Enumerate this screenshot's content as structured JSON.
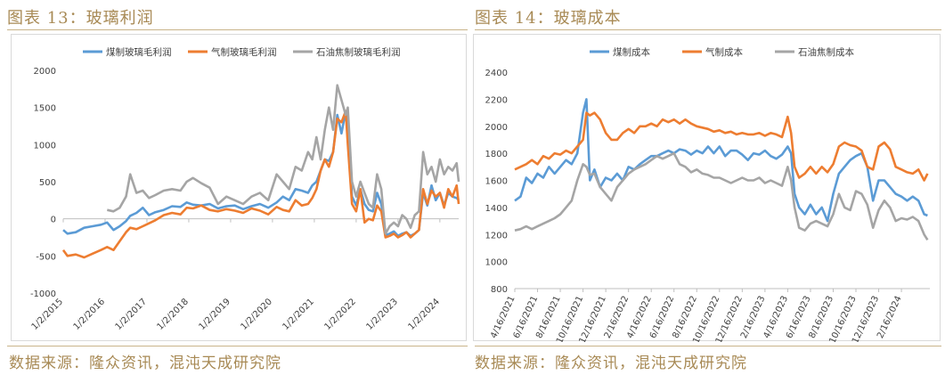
{
  "left": {
    "title": "图表 13：玻璃利润",
    "source": "数据来源：隆众资讯，混沌天成研究院"
  },
  "right": {
    "title": "图表 14：玻璃成本",
    "source": "数据来源：隆众资讯，混沌天成研究院"
  },
  "chart_data": [
    {
      "type": "line",
      "title": "",
      "xlabel": "",
      "ylabel": "",
      "ylim": [
        -1000,
        2000
      ],
      "yticks": [
        -1000,
        -500,
        0,
        500,
        1000,
        1500,
        2000
      ],
      "xlim": [
        2015.0,
        2024.45
      ],
      "xtick_labels": [
        "1/2/2015",
        "1/2/2016",
        "1/2/2017",
        "1/2/2018",
        "1/2/2019",
        "1/2/2020",
        "1/2/2021",
        "1/2/2022",
        "1/2/2023",
        "1/2/2024"
      ],
      "xtick_pos": [
        2015,
        2016,
        2017,
        2018,
        2019,
        2020,
        2021,
        2022,
        2023,
        2024
      ],
      "grid": false,
      "legend": "top",
      "series": [
        {
          "name": "煤制玻璃毛利润",
          "color": "#5B9BD5",
          "x": [
            2015.0,
            2015.1,
            2015.3,
            2015.5,
            2015.7,
            2015.9,
            2016.05,
            2016.2,
            2016.35,
            2016.5,
            2016.6,
            2016.75,
            2016.9,
            2017.05,
            2017.2,
            2017.4,
            2017.6,
            2017.8,
            2017.95,
            2018.1,
            2018.3,
            2018.5,
            2018.7,
            2018.9,
            2019.1,
            2019.3,
            2019.5,
            2019.7,
            2019.9,
            2020.1,
            2020.25,
            2020.4,
            2020.55,
            2020.7,
            2020.85,
            2020.95,
            2021.05,
            2021.15,
            2021.25,
            2021.35,
            2021.45,
            2021.55,
            2021.65,
            2021.75,
            2021.8,
            2021.9,
            2022.0,
            2022.1,
            2022.2,
            2022.3,
            2022.4,
            2022.5,
            2022.6,
            2022.7,
            2022.8,
            2022.9,
            2023.0,
            2023.1,
            2023.2,
            2023.3,
            2023.4,
            2023.5,
            2023.6,
            2023.7,
            2023.8,
            2023.9,
            2024.0,
            2024.1,
            2024.2,
            2024.3,
            2024.4,
            2024.45
          ],
          "y": [
            -150,
            -200,
            -180,
            -120,
            -100,
            -80,
            -50,
            -150,
            -100,
            -30,
            40,
            80,
            150,
            50,
            90,
            120,
            170,
            160,
            220,
            190,
            180,
            200,
            140,
            170,
            180,
            130,
            170,
            200,
            150,
            220,
            300,
            250,
            400,
            380,
            350,
            450,
            500,
            650,
            800,
            780,
            900,
            1400,
            1150,
            1450,
            1200,
            300,
            180,
            400,
            200,
            120,
            100,
            350,
            200,
            -220,
            -200,
            -170,
            -230,
            -200,
            -180,
            -230,
            -200,
            -150,
            350,
            180,
            450,
            250,
            350,
            180,
            350,
            300,
            280,
            250
          ]
        },
        {
          "name": "气制玻璃毛利润",
          "color": "#ED7D31",
          "x": [
            2015.0,
            2015.1,
            2015.3,
            2015.5,
            2015.7,
            2015.9,
            2016.05,
            2016.2,
            2016.35,
            2016.5,
            2016.6,
            2016.75,
            2016.9,
            2017.05,
            2017.2,
            2017.4,
            2017.6,
            2017.8,
            2017.95,
            2018.1,
            2018.3,
            2018.5,
            2018.7,
            2018.9,
            2019.1,
            2019.3,
            2019.5,
            2019.7,
            2019.9,
            2020.1,
            2020.25,
            2020.4,
            2020.55,
            2020.7,
            2020.85,
            2020.95,
            2021.05,
            2021.15,
            2021.25,
            2021.35,
            2021.45,
            2021.55,
            2021.65,
            2021.75,
            2021.8,
            2021.9,
            2022.0,
            2022.1,
            2022.2,
            2022.3,
            2022.4,
            2022.5,
            2022.6,
            2022.7,
            2022.8,
            2022.9,
            2023.0,
            2023.1,
            2023.2,
            2023.3,
            2023.4,
            2023.5,
            2023.6,
            2023.7,
            2023.8,
            2023.9,
            2024.0,
            2024.1,
            2024.2,
            2024.3,
            2024.4,
            2024.45
          ],
          "y": [
            -420,
            -500,
            -480,
            -520,
            -470,
            -420,
            -380,
            -420,
            -300,
            -180,
            -120,
            -140,
            -100,
            -60,
            -20,
            50,
            80,
            60,
            150,
            140,
            180,
            120,
            100,
            130,
            110,
            80,
            140,
            110,
            60,
            160,
            120,
            100,
            250,
            180,
            200,
            280,
            400,
            650,
            800,
            700,
            900,
            1350,
            1300,
            1450,
            1000,
            200,
            100,
            400,
            -50,
            0,
            -20,
            180,
            100,
            -250,
            -230,
            -200,
            -250,
            -220,
            -180,
            -250,
            -200,
            -150,
            400,
            200,
            380,
            300,
            350,
            150,
            400,
            300,
            450,
            200
          ]
        },
        {
          "name": "石油焦制玻璃毛利润",
          "color": "#A5A5A5",
          "x": [
            2016.05,
            2016.2,
            2016.35,
            2016.5,
            2016.6,
            2016.75,
            2016.9,
            2017.05,
            2017.2,
            2017.4,
            2017.6,
            2017.8,
            2017.95,
            2018.1,
            2018.3,
            2018.5,
            2018.7,
            2018.9,
            2019.1,
            2019.3,
            2019.5,
            2019.7,
            2019.9,
            2020.1,
            2020.25,
            2020.4,
            2020.55,
            2020.7,
            2020.85,
            2020.95,
            2021.05,
            2021.15,
            2021.25,
            2021.35,
            2021.45,
            2021.55,
            2021.65,
            2021.75,
            2021.8,
            2021.9,
            2022.0,
            2022.1,
            2022.2,
            2022.3,
            2022.4,
            2022.5,
            2022.6,
            2022.7,
            2022.8,
            2022.9,
            2023.0,
            2023.1,
            2023.2,
            2023.3,
            2023.4,
            2023.5,
            2023.6,
            2023.7,
            2023.8,
            2023.9,
            2024.0,
            2024.1,
            2024.2,
            2024.3,
            2024.4,
            2024.45
          ],
          "y": [
            120,
            100,
            150,
            300,
            600,
            350,
            380,
            280,
            320,
            380,
            400,
            380,
            500,
            550,
            480,
            420,
            200,
            300,
            250,
            200,
            300,
            350,
            250,
            600,
            500,
            400,
            700,
            650,
            900,
            800,
            1100,
            800,
            1200,
            1500,
            1200,
            1800,
            1600,
            1400,
            1500,
            500,
            300,
            500,
            350,
            200,
            150,
            600,
            400,
            -200,
            -100,
            -50,
            -100,
            50,
            0,
            -120,
            50,
            100,
            900,
            600,
            700,
            500,
            800,
            600,
            700,
            650,
            750,
            500
          ]
        }
      ]
    },
    {
      "type": "line",
      "title": "",
      "xlabel": "",
      "ylabel": "",
      "ylim": [
        800,
        2400
      ],
      "yticks": [
        800,
        1000,
        1200,
        1400,
        1600,
        1800,
        2000,
        2200,
        2400
      ],
      "xlim": [
        0,
        36.5
      ],
      "xtick_labels": [
        "4/16/2021",
        "6/16/2021",
        "8/16/2021",
        "10/16/2021",
        "12/16/2021",
        "2/16/2022",
        "4/16/2022",
        "6/16/2022",
        "8/16/2022",
        "10/16/2022",
        "12/16/2022",
        "2/16/2023",
        "4/16/2023",
        "6/16/2023",
        "8/16/2023",
        "10/16/2023",
        "12/16/2023",
        "2/16/2024"
      ],
      "xtick_pos": [
        0,
        2,
        4,
        6,
        8,
        10,
        12,
        14,
        16,
        18,
        20,
        22,
        24,
        26,
        28,
        30,
        32,
        34
      ],
      "grid": false,
      "legend": "top",
      "series": [
        {
          "name": "煤制成本",
          "color": "#5B9BD5",
          "x": [
            0,
            0.5,
            1,
            1.5,
            2,
            2.5,
            3,
            3.5,
            4,
            4.5,
            5,
            5.5,
            6,
            6.3,
            6.6,
            7,
            7.5,
            8,
            8.5,
            9,
            9.5,
            10,
            10.5,
            11,
            11.5,
            12,
            12.5,
            13,
            13.5,
            14,
            14.5,
            15,
            15.5,
            16,
            16.5,
            17,
            17.5,
            18,
            18.5,
            19,
            19.5,
            20,
            20.5,
            21,
            21.5,
            22,
            22.5,
            23,
            23.5,
            24,
            24.3,
            24.6,
            25,
            25.5,
            26,
            26.5,
            27,
            27.5,
            28,
            28.5,
            29,
            29.5,
            30,
            30.5,
            31,
            31.5,
            32,
            32.5,
            33,
            33.5,
            34,
            34.5,
            35,
            35.5,
            36,
            36.3
          ],
          "y": [
            1450,
            1480,
            1620,
            1580,
            1650,
            1620,
            1700,
            1650,
            1700,
            1750,
            1720,
            1800,
            2100,
            2200,
            1600,
            1680,
            1550,
            1620,
            1600,
            1650,
            1600,
            1700,
            1680,
            1720,
            1750,
            1780,
            1780,
            1800,
            1820,
            1800,
            1830,
            1820,
            1790,
            1820,
            1800,
            1850,
            1800,
            1850,
            1780,
            1820,
            1820,
            1790,
            1750,
            1800,
            1790,
            1820,
            1780,
            1760,
            1790,
            1850,
            1800,
            1500,
            1400,
            1350,
            1420,
            1350,
            1400,
            1300,
            1500,
            1650,
            1700,
            1750,
            1780,
            1800,
            1700,
            1450,
            1600,
            1600,
            1550,
            1500,
            1480,
            1450,
            1480,
            1450,
            1350,
            1340
          ]
        },
        {
          "name": "气制成本",
          "color": "#ED7D31",
          "x": [
            0,
            0.5,
            1,
            1.5,
            2,
            2.5,
            3,
            3.5,
            4,
            4.5,
            5,
            5.5,
            6,
            6.3,
            6.6,
            7,
            7.5,
            8,
            8.5,
            9,
            9.5,
            10,
            10.5,
            11,
            11.5,
            12,
            12.5,
            13,
            13.5,
            14,
            14.5,
            15,
            15.5,
            16,
            16.5,
            17,
            17.5,
            18,
            18.5,
            19,
            19.5,
            20,
            20.5,
            21,
            21.5,
            22,
            22.5,
            23,
            23.5,
            24,
            24.3,
            24.6,
            25,
            25.5,
            26,
            26.5,
            27,
            27.5,
            28,
            28.5,
            29,
            29.5,
            30,
            30.5,
            31,
            31.5,
            32,
            32.5,
            33,
            33.5,
            34,
            34.5,
            35,
            35.5,
            36,
            36.3
          ],
          "y": [
            1680,
            1700,
            1720,
            1750,
            1720,
            1780,
            1760,
            1800,
            1790,
            1820,
            1800,
            1850,
            1900,
            2100,
            2080,
            2100,
            2050,
            1950,
            1900,
            1900,
            1950,
            1980,
            1950,
            2000,
            2000,
            2020,
            2000,
            2050,
            2030,
            2050,
            2020,
            2050,
            2020,
            2000,
            1990,
            1980,
            1960,
            1970,
            1950,
            1960,
            1940,
            1950,
            1940,
            1940,
            1950,
            1930,
            1950,
            1940,
            1920,
            2070,
            1950,
            1700,
            1620,
            1650,
            1700,
            1650,
            1700,
            1660,
            1720,
            1850,
            1880,
            1860,
            1850,
            1820,
            1700,
            1680,
            1850,
            1880,
            1830,
            1700,
            1680,
            1660,
            1650,
            1680,
            1600,
            1650
          ]
        },
        {
          "name": "石油焦制成本",
          "color": "#A5A5A5",
          "x": [
            0,
            0.5,
            1,
            1.5,
            2,
            2.5,
            3,
            3.5,
            4,
            4.5,
            5,
            5.5,
            6,
            6.3,
            6.6,
            7,
            7.5,
            8,
            8.5,
            9,
            9.5,
            10,
            10.5,
            11,
            11.5,
            12,
            12.5,
            13,
            13.5,
            14,
            14.5,
            15,
            15.5,
            16,
            16.5,
            17,
            17.5,
            18,
            18.5,
            19,
            19.5,
            20,
            20.5,
            21,
            21.5,
            22,
            22.5,
            23,
            23.5,
            24,
            24.3,
            24.6,
            25,
            25.5,
            26,
            26.5,
            27,
            27.5,
            28,
            28.5,
            29,
            29.5,
            30,
            30.5,
            31,
            31.5,
            32,
            32.5,
            33,
            33.5,
            34,
            34.5,
            35,
            35.5,
            36,
            36.3
          ],
          "y": [
            1230,
            1240,
            1260,
            1240,
            1260,
            1280,
            1300,
            1320,
            1350,
            1400,
            1450,
            1600,
            1720,
            1700,
            1640,
            1650,
            1550,
            1500,
            1450,
            1550,
            1600,
            1650,
            1680,
            1700,
            1720,
            1750,
            1780,
            1760,
            1780,
            1800,
            1720,
            1700,
            1660,
            1680,
            1650,
            1640,
            1620,
            1620,
            1600,
            1580,
            1600,
            1620,
            1600,
            1600,
            1620,
            1580,
            1600,
            1580,
            1560,
            1700,
            1600,
            1400,
            1250,
            1230,
            1280,
            1300,
            1280,
            1260,
            1350,
            1500,
            1400,
            1380,
            1520,
            1500,
            1420,
            1250,
            1380,
            1450,
            1400,
            1300,
            1320,
            1310,
            1330,
            1300,
            1200,
            1160
          ]
        }
      ]
    }
  ]
}
